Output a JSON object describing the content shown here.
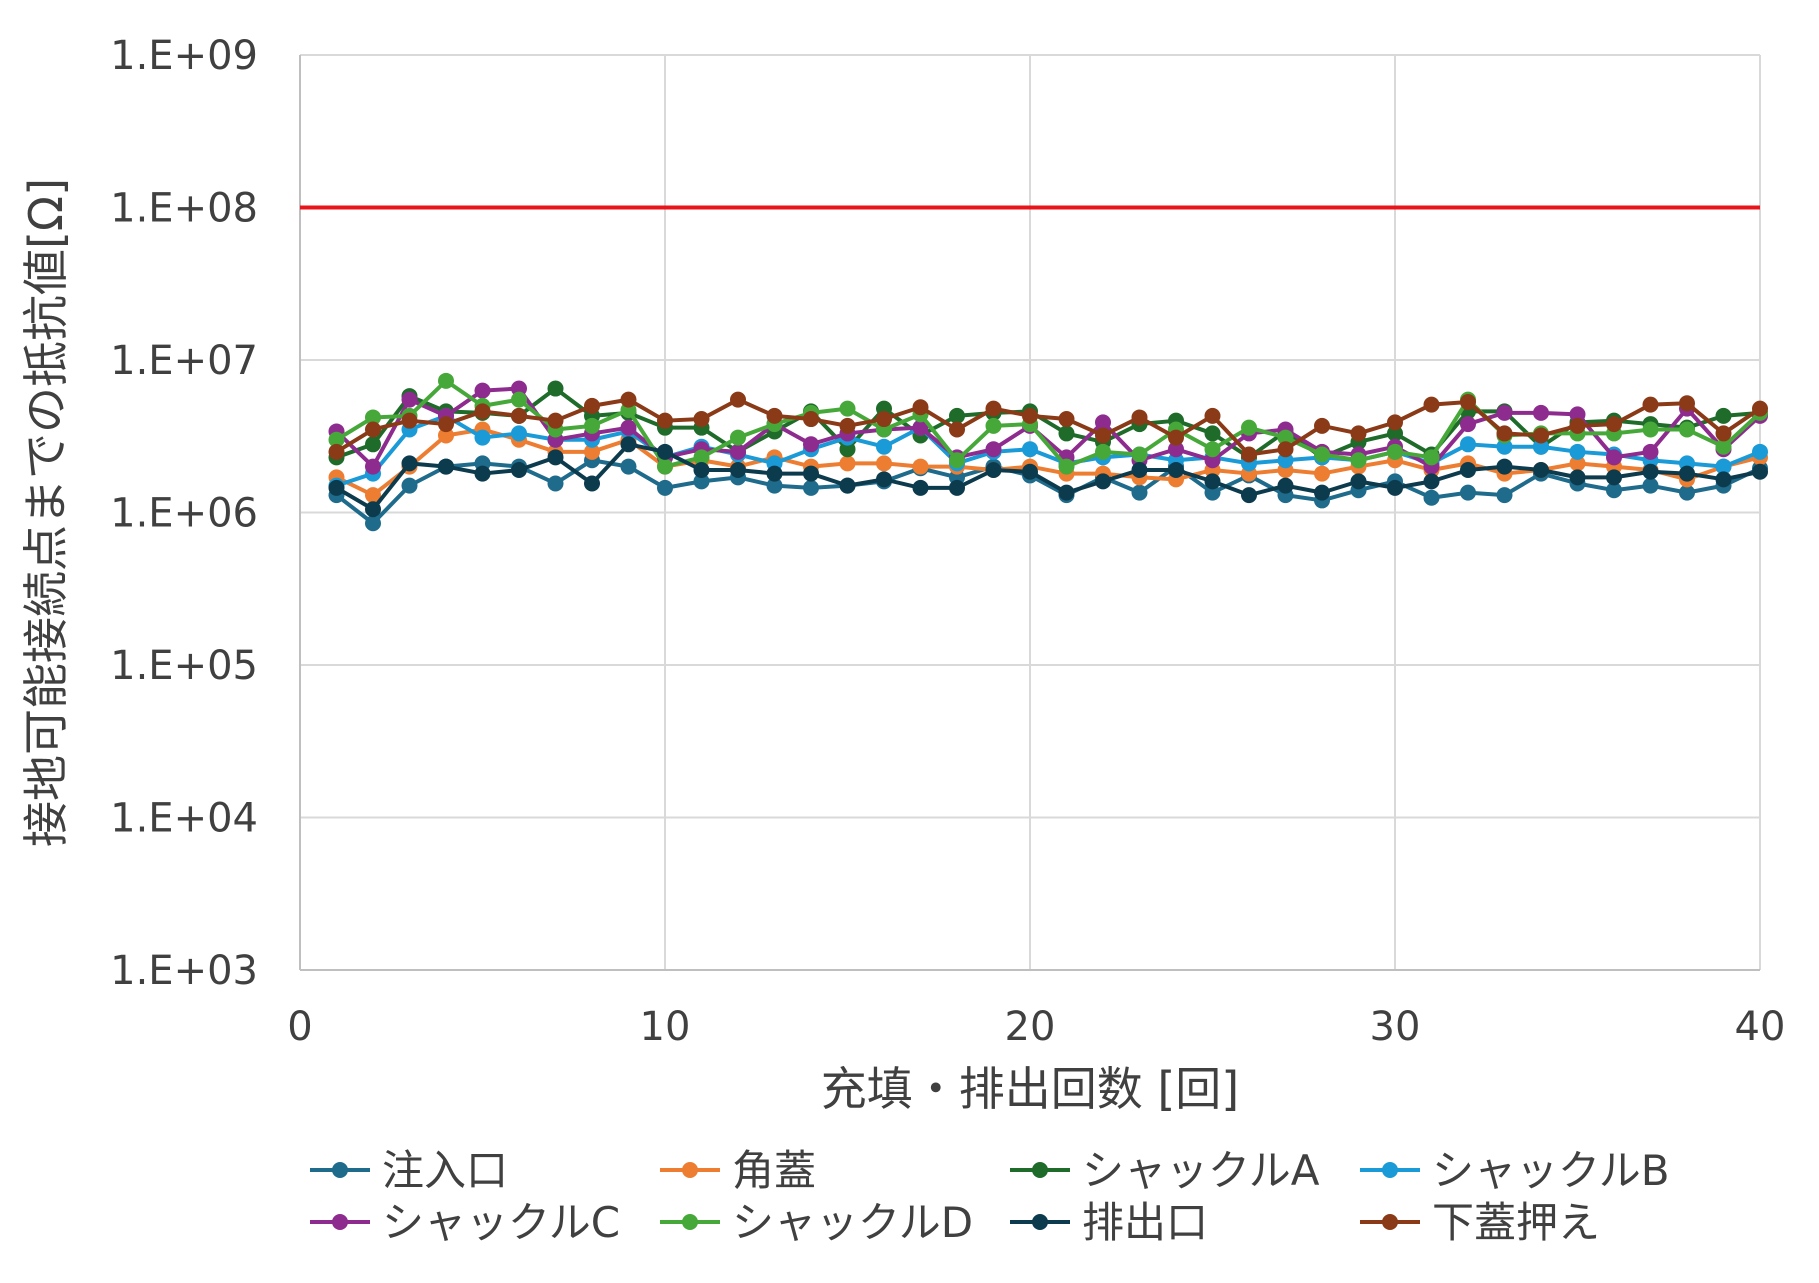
{
  "chart_data": {
    "type": "line",
    "xlabel": "充填・排出回数 [回]",
    "ylabel": "接地可能接続点までの抵抗値[Ω]",
    "y_scale": "log",
    "xlim": [
      0,
      40
    ],
    "ylim": [
      1000,
      1000000000
    ],
    "x_ticks": [
      "0",
      "10",
      "20",
      "30",
      "40"
    ],
    "y_ticks": [
      "1.E+03",
      "1.E+04",
      "1.E+05",
      "1.E+06",
      "1.E+07",
      "1.E+08",
      "1.E+09"
    ],
    "grid": true,
    "legend_position": "bottom",
    "threshold": {
      "value": 100000000,
      "color": "#e8141b"
    },
    "x": [
      1,
      2,
      3,
      4,
      5,
      6,
      7,
      8,
      9,
      10,
      11,
      12,
      13,
      14,
      15,
      16,
      17,
      18,
      19,
      20,
      21,
      22,
      23,
      24,
      25,
      26,
      27,
      28,
      29,
      30,
      31,
      32,
      33,
      34,
      35,
      36,
      37,
      38,
      39,
      40
    ],
    "series": [
      {
        "name": "注入口",
        "color": "#1f6b8c",
        "values": [
          1300000,
          850000,
          1500000,
          2000000,
          2100000,
          2000000,
          1550000,
          2200000,
          2000000,
          1450000,
          1600000,
          1700000,
          1500000,
          1450000,
          1500000,
          1600000,
          1950000,
          1700000,
          2000000,
          1750000,
          1300000,
          1700000,
          1350000,
          2000000,
          1350000,
          1750000,
          1300000,
          1200000,
          1400000,
          1600000,
          1250000,
          1350000,
          1300000,
          1800000,
          1550000,
          1400000,
          1500000,
          1350000,
          1500000,
          1950000
        ]
      },
      {
        "name": "角蓋",
        "color": "#ed7d31",
        "values": [
          1700000,
          1300000,
          2000000,
          3200000,
          3500000,
          3000000,
          2500000,
          2500000,
          3000000,
          2000000,
          2200000,
          2000000,
          2300000,
          2000000,
          2100000,
          2100000,
          2000000,
          2000000,
          1900000,
          2000000,
          1800000,
          1800000,
          1700000,
          1650000,
          1900000,
          1800000,
          1900000,
          1800000,
          2000000,
          2200000,
          1900000,
          2100000,
          1800000,
          1900000,
          2100000,
          2000000,
          1900000,
          1650000,
          2000000,
          2300000
        ]
      },
      {
        "name": "シャックルA",
        "color": "#1e6b2a",
        "values": [
          2300000,
          2800000,
          5800000,
          4600000,
          4500000,
          4300000,
          6500000,
          4300000,
          4500000,
          3600000,
          3600000,
          2500000,
          3400000,
          4600000,
          2600000,
          4800000,
          3200000,
          4300000,
          4500000,
          4600000,
          3300000,
          2900000,
          3800000,
          4000000,
          3300000,
          2300000,
          3400000,
          2300000,
          2900000,
          3300000,
          2400000,
          4600000,
          4600000,
          2700000,
          3900000,
          4000000,
          3800000,
          3600000,
          4300000,
          4500000
        ]
      },
      {
        "name": "シャックルB",
        "color": "#1a9ad6",
        "values": [
          1500000,
          1800000,
          3500000,
          4300000,
          3100000,
          3300000,
          3000000,
          3000000,
          3400000,
          2300000,
          2700000,
          2400000,
          2100000,
          2600000,
          3100000,
          2700000,
          3600000,
          2100000,
          2500000,
          2600000,
          2100000,
          2300000,
          2400000,
          2200000,
          2300000,
          2100000,
          2200000,
          2300000,
          2200000,
          2500000,
          2100000,
          2800000,
          2700000,
          2700000,
          2500000,
          2400000,
          2200000,
          2100000,
          2000000,
          2500000
        ]
      },
      {
        "name": "シャックルC",
        "color": "#8e2b8e",
        "values": [
          3400000,
          2000000,
          5500000,
          4300000,
          6300000,
          6500000,
          3000000,
          3300000,
          3600000,
          2300000,
          2600000,
          2500000,
          3800000,
          2800000,
          3300000,
          3500000,
          3600000,
          2300000,
          2600000,
          3700000,
          2300000,
          3900000,
          2200000,
          2600000,
          2200000,
          3300000,
          3500000,
          2500000,
          2400000,
          2700000,
          2000000,
          3800000,
          4500000,
          4500000,
          4400000,
          2300000,
          2500000,
          4800000,
          2600000,
          4300000
        ]
      },
      {
        "name": "シャックルD",
        "color": "#47a83a",
        "values": [
          3000000,
          4200000,
          4300000,
          7300000,
          5000000,
          5500000,
          3500000,
          3700000,
          4700000,
          2000000,
          2300000,
          3100000,
          3800000,
          4500000,
          4800000,
          3500000,
          4400000,
          2200000,
          3700000,
          3800000,
          2000000,
          2500000,
          2400000,
          3500000,
          2600000,
          3600000,
          3100000,
          2400000,
          2200000,
          2500000,
          2300000,
          5500000,
          3200000,
          3300000,
          3300000,
          3300000,
          3500000,
          3500000,
          2700000,
          4500000
        ]
      },
      {
        "name": "排出口",
        "color": "#0d3b4e",
        "values": [
          1450000,
          1050000,
          2100000,
          2000000,
          1800000,
          1900000,
          2300000,
          1550000,
          2800000,
          2500000,
          1900000,
          1900000,
          1800000,
          1800000,
          1500000,
          1650000,
          1450000,
          1450000,
          1900000,
          1850000,
          1350000,
          1600000,
          1900000,
          1900000,
          1600000,
          1300000,
          1500000,
          1350000,
          1600000,
          1450000,
          1600000,
          1900000,
          2000000,
          1900000,
          1700000,
          1700000,
          1850000,
          1800000,
          1650000,
          1850000
        ]
      },
      {
        "name": "下蓋押え",
        "color": "#8b3a17",
        "values": [
          2500000,
          3500000,
          4000000,
          3800000,
          4600000,
          4300000,
          4000000,
          5000000,
          5500000,
          4000000,
          4100000,
          5500000,
          4300000,
          4100000,
          3700000,
          4100000,
          4900000,
          3500000,
          4800000,
          4300000,
          4100000,
          3200000,
          4200000,
          3100000,
          4300000,
          2400000,
          2600000,
          3700000,
          3300000,
          3900000,
          5100000,
          5300000,
          3300000,
          3200000,
          3700000,
          3800000,
          5100000,
          5200000,
          3300000,
          4800000
        ]
      }
    ]
  }
}
